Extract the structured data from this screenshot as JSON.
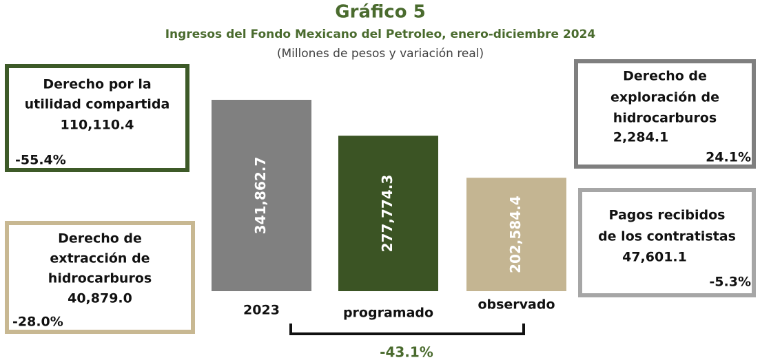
{
  "chart_data": {
    "type": "bar",
    "title": "Gráfico 5",
    "subtitle": "Ingresos del Fondo Mexicano del Petroleo, enero-diciembre 2024",
    "note": "(Millones de pesos y variación real)",
    "categories": [
      "2023",
      "programado",
      "observado"
    ],
    "values": [
      341862.7,
      277774.3,
      202584.4
    ],
    "value_labels": [
      "341,862.7",
      "277,774.3",
      "202,584.4"
    ],
    "colors": [
      "#808080",
      "#3b5424",
      "#c4b592"
    ],
    "change": -43.1,
    "change_label": "-43.1%",
    "boxes": [
      {
        "label_lines": [
          "Derecho por la",
          "utilidad compartida"
        ],
        "value": 110110.4,
        "value_label": "110,110.4",
        "change": -55.4,
        "change_label": "-55.4%",
        "color": "#3d5a28"
      },
      {
        "label_lines": [
          "Derecho de",
          "extracción de",
          "hidrocarburos"
        ],
        "value": 40879.0,
        "value_label": "40,879.0",
        "change": -28.0,
        "change_label": "-28.0%",
        "color": "#c8b892"
      },
      {
        "label_lines": [
          "Derecho de",
          "exploración de",
          "hidrocarburos"
        ],
        "value": 2284.1,
        "value_label": "2,284.1",
        "change": 24.1,
        "change_label": "24.1%",
        "color": "#7f7f7f"
      },
      {
        "label_lines": [
          "Pagos recibidos",
          "de los contratistas"
        ],
        "value": 47601.1,
        "value_label": "47,601.1",
        "change": -5.3,
        "change_label": "-5.3%",
        "color": "#a6a6a6"
      }
    ]
  }
}
